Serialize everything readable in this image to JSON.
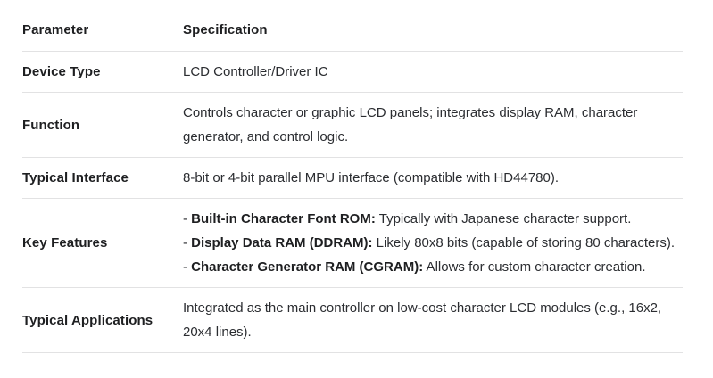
{
  "colors": {
    "background": "#ffffff",
    "text_primary": "#1e1f21",
    "text_body": "#2b2d31",
    "divider": "#e2e2e3"
  },
  "table": {
    "headers": {
      "parameter": "Parameter",
      "specification": "Specification"
    },
    "rows": [
      {
        "parameter": "Device Type",
        "spec": [
          {
            "text": "LCD Controller/Driver IC"
          }
        ]
      },
      {
        "parameter": "Function",
        "spec": [
          {
            "text": "Controls character or graphic LCD panels; integrates display RAM, character generator, and control logic."
          }
        ]
      },
      {
        "parameter": "Typical Interface",
        "spec": [
          {
            "text": "8-bit or 4-bit parallel MPU interface (compatible with HD44780)."
          }
        ]
      },
      {
        "parameter": "Key Features",
        "spec": [
          {
            "prefix": "- ",
            "bold": "Built-in Character Font ROM:",
            "text": " Typically with Japanese character support."
          },
          {
            "prefix": "- ",
            "bold": "Display Data RAM (DDRAM):",
            "text": " Likely 80x8 bits (capable of storing 80 characters)."
          },
          {
            "prefix": "- ",
            "bold": "Character Generator RAM (CGRAM):",
            "text": " Allows for custom character creation."
          }
        ]
      },
      {
        "parameter": "Typical Applications",
        "spec": [
          {
            "text": "Integrated as the main controller on low-cost character LCD modules (e.g., 16x2, 20x4 lines)."
          }
        ]
      }
    ]
  }
}
